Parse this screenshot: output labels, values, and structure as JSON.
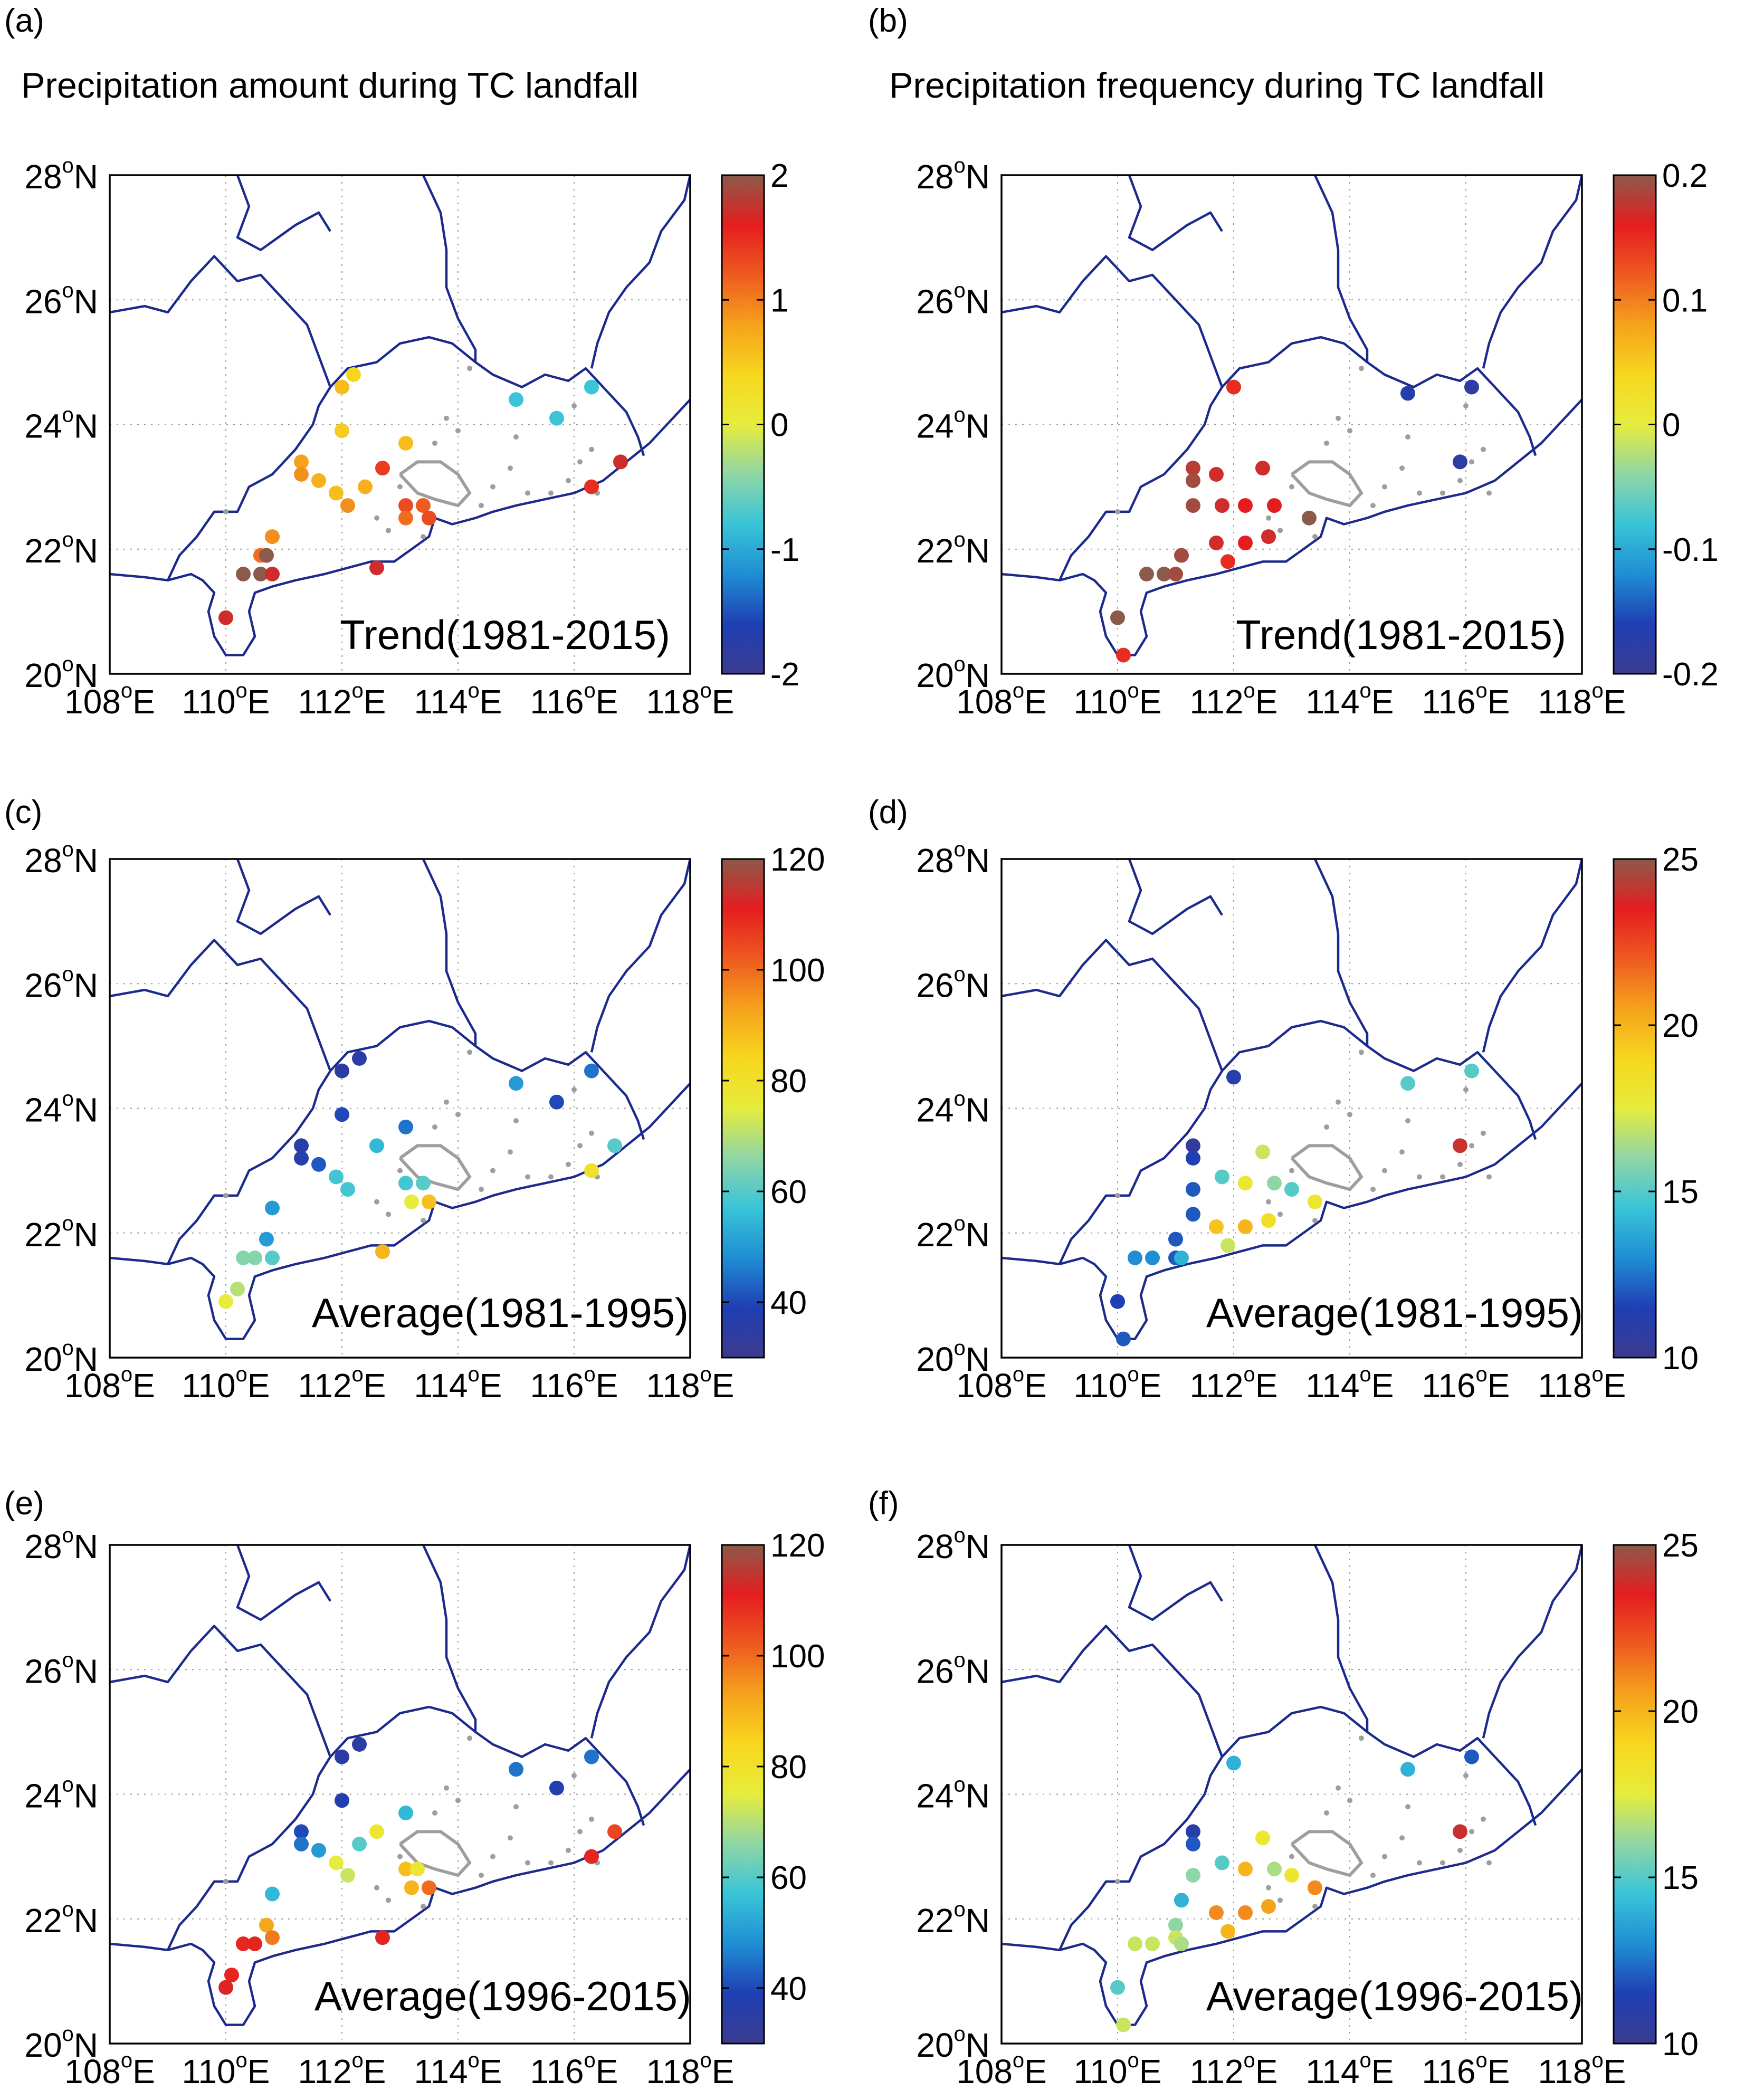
{
  "figure": {
    "column_titles": [
      "Precipitation amount during TC landfall",
      "Precipitation frequency during TC landfall"
    ],
    "lon_ticks": [
      108,
      110,
      112,
      114,
      116,
      118
    ],
    "lat_ticks": [
      20,
      22,
      24,
      26,
      28
    ],
    "lon_suffix": "E",
    "lat_suffix": "N",
    "degree_symbol": "o",
    "colors": {
      "border": "#1c2a8c",
      "station_gray": "#9e9e9e",
      "frame": "#000000",
      "colormap": [
        "#3b3b8f",
        "#1f3fb4",
        "#1f8ed4",
        "#39c4d8",
        "#8fd6a6",
        "#e6ec3c",
        "#f7d71e",
        "#f5a21c",
        "#ee5a20",
        "#e51d20",
        "#8c5a4a"
      ]
    }
  },
  "panels": [
    {
      "label": "(a)",
      "annotation": "Trend(1981-2015)",
      "colorbar": {
        "min": -2,
        "max": 2,
        "ticks": [
          "2",
          "1",
          "0",
          "-1",
          "-2"
        ],
        "tick_values": [
          2,
          1,
          0,
          -1,
          -2
        ]
      },
      "stations": [
        {
          "lon": 112.0,
          "lat": 24.6,
          "value": 0.6
        },
        {
          "lon": 112.2,
          "lat": 24.8,
          "value": 0.4
        },
        {
          "lon": 112.0,
          "lat": 23.9,
          "value": 0.5
        },
        {
          "lon": 111.3,
          "lat": 23.4,
          "value": 0.8
        },
        {
          "lon": 111.3,
          "lat": 23.2,
          "value": 0.9
        },
        {
          "lon": 111.6,
          "lat": 23.1,
          "value": 0.7
        },
        {
          "lon": 111.9,
          "lat": 22.9,
          "value": 0.6
        },
        {
          "lon": 112.1,
          "lat": 22.7,
          "value": 0.9
        },
        {
          "lon": 112.4,
          "lat": 23.0,
          "value": 0.7
        },
        {
          "lon": 112.7,
          "lat": 23.3,
          "value": 1.4
        },
        {
          "lon": 113.1,
          "lat": 23.7,
          "value": 0.6
        },
        {
          "lon": 113.1,
          "lat": 22.7,
          "value": 1.3
        },
        {
          "lon": 113.4,
          "lat": 22.7,
          "value": 1.2
        },
        {
          "lon": 113.1,
          "lat": 22.5,
          "value": 1.1
        },
        {
          "lon": 113.5,
          "lat": 22.5,
          "value": 1.3
        },
        {
          "lon": 110.8,
          "lat": 22.2,
          "value": 0.9
        },
        {
          "lon": 110.6,
          "lat": 21.9,
          "value": 1.1
        },
        {
          "lon": 110.7,
          "lat": 21.9,
          "value": 2.0
        },
        {
          "lon": 110.3,
          "lat": 21.6,
          "value": 2.0
        },
        {
          "lon": 110.6,
          "lat": 21.6,
          "value": 2.0
        },
        {
          "lon": 110.8,
          "lat": 21.6,
          "value": 1.7
        },
        {
          "lon": 110.0,
          "lat": 20.9,
          "value": 1.7
        },
        {
          "lon": 115.0,
          "lat": 24.4,
          "value": -0.8
        },
        {
          "lon": 116.3,
          "lat": 24.6,
          "value": -0.8
        },
        {
          "lon": 115.7,
          "lat": 24.1,
          "value": -0.8
        },
        {
          "lon": 116.3,
          "lat": 23.0,
          "value": 1.5
        },
        {
          "lon": 116.8,
          "lat": 23.4,
          "value": 1.7
        },
        {
          "lon": 112.6,
          "lat": 21.7,
          "value": 1.7
        }
      ]
    },
    {
      "label": "(b)",
      "annotation": "Trend(1981-2015)",
      "colorbar": {
        "min": -0.2,
        "max": 0.2,
        "ticks": [
          "0.2",
          "0.1",
          "0",
          "-0.1",
          "-0.2"
        ],
        "tick_values": [
          0.2,
          0.1,
          0,
          -0.1,
          -0.2
        ]
      },
      "stations": [
        {
          "lon": 112.0,
          "lat": 24.6,
          "value": 0.15
        },
        {
          "lon": 111.3,
          "lat": 23.3,
          "value": 0.18
        },
        {
          "lon": 111.3,
          "lat": 23.1,
          "value": 0.19
        },
        {
          "lon": 111.7,
          "lat": 23.2,
          "value": 0.17
        },
        {
          "lon": 112.5,
          "lat": 23.3,
          "value": 0.17
        },
        {
          "lon": 111.3,
          "lat": 22.7,
          "value": 0.19
        },
        {
          "lon": 111.8,
          "lat": 22.7,
          "value": 0.17
        },
        {
          "lon": 112.2,
          "lat": 22.7,
          "value": 0.16
        },
        {
          "lon": 112.7,
          "lat": 22.7,
          "value": 0.16
        },
        {
          "lon": 113.3,
          "lat": 22.5,
          "value": 0.2
        },
        {
          "lon": 111.7,
          "lat": 22.1,
          "value": 0.17
        },
        {
          "lon": 112.2,
          "lat": 22.1,
          "value": 0.16
        },
        {
          "lon": 112.6,
          "lat": 22.2,
          "value": 0.17
        },
        {
          "lon": 111.1,
          "lat": 21.9,
          "value": 0.19
        },
        {
          "lon": 111.9,
          "lat": 21.8,
          "value": 0.15
        },
        {
          "lon": 110.8,
          "lat": 21.6,
          "value": 0.2
        },
        {
          "lon": 110.5,
          "lat": 21.6,
          "value": 0.2
        },
        {
          "lon": 111.0,
          "lat": 21.6,
          "value": 0.19
        },
        {
          "lon": 110.0,
          "lat": 20.9,
          "value": 0.2
        },
        {
          "lon": 110.1,
          "lat": 20.3,
          "value": 0.15
        },
        {
          "lon": 115.0,
          "lat": 24.5,
          "value": -0.17
        },
        {
          "lon": 116.1,
          "lat": 24.6,
          "value": -0.18
        },
        {
          "lon": 115.9,
          "lat": 23.4,
          "value": -0.18
        }
      ]
    },
    {
      "label": "(c)",
      "annotation": "Average(1981-1995)",
      "colorbar": {
        "min": 30,
        "max": 120,
        "ticks": [
          "120",
          "100",
          "80",
          "60",
          "40"
        ],
        "tick_values": [
          120,
          100,
          80,
          60,
          40
        ]
      },
      "stations": [
        {
          "lon": 112.0,
          "lat": 24.6,
          "value": 35
        },
        {
          "lon": 112.3,
          "lat": 24.8,
          "value": 35
        },
        {
          "lon": 112.0,
          "lat": 23.9,
          "value": 40
        },
        {
          "lon": 111.3,
          "lat": 23.4,
          "value": 36
        },
        {
          "lon": 111.3,
          "lat": 23.2,
          "value": 36
        },
        {
          "lon": 111.6,
          "lat": 23.1,
          "value": 42
        },
        {
          "lon": 111.9,
          "lat": 22.9,
          "value": 58
        },
        {
          "lon": 112.1,
          "lat": 22.7,
          "value": 58
        },
        {
          "lon": 112.6,
          "lat": 23.4,
          "value": 55
        },
        {
          "lon": 113.1,
          "lat": 23.7,
          "value": 45
        },
        {
          "lon": 113.1,
          "lat": 22.8,
          "value": 58
        },
        {
          "lon": 113.4,
          "lat": 22.8,
          "value": 60
        },
        {
          "lon": 113.2,
          "lat": 22.5,
          "value": 75
        },
        {
          "lon": 113.5,
          "lat": 22.5,
          "value": 88
        },
        {
          "lon": 110.8,
          "lat": 22.4,
          "value": 50
        },
        {
          "lon": 110.7,
          "lat": 21.9,
          "value": 50
        },
        {
          "lon": 110.8,
          "lat": 21.6,
          "value": 60
        },
        {
          "lon": 110.5,
          "lat": 21.6,
          "value": 65
        },
        {
          "lon": 110.3,
          "lat": 21.6,
          "value": 65
        },
        {
          "lon": 110.2,
          "lat": 21.1,
          "value": 70
        },
        {
          "lon": 110.0,
          "lat": 20.9,
          "value": 75
        },
        {
          "lon": 112.7,
          "lat": 21.7,
          "value": 90
        },
        {
          "lon": 115.0,
          "lat": 24.4,
          "value": 50
        },
        {
          "lon": 116.3,
          "lat": 24.6,
          "value": 45
        },
        {
          "lon": 115.7,
          "lat": 24.1,
          "value": 40
        },
        {
          "lon": 116.3,
          "lat": 23.0,
          "value": 80
        },
        {
          "lon": 116.7,
          "lat": 23.4,
          "value": 60
        }
      ]
    },
    {
      "label": "(d)",
      "annotation": "Average(1981-1995)",
      "colorbar": {
        "min": 10,
        "max": 25,
        "ticks": [
          "25",
          "20",
          "15",
          "10"
        ],
        "tick_values": [
          25,
          20,
          15,
          10
        ]
      },
      "stations": [
        {
          "lon": 112.0,
          "lat": 24.5,
          "value": 11
        },
        {
          "lon": 111.3,
          "lat": 23.4,
          "value": 10.5
        },
        {
          "lon": 111.3,
          "lat": 23.2,
          "value": 11.5
        },
        {
          "lon": 112.5,
          "lat": 23.3,
          "value": 17
        },
        {
          "lon": 111.8,
          "lat": 22.9,
          "value": 15
        },
        {
          "lon": 112.2,
          "lat": 22.8,
          "value": 18
        },
        {
          "lon": 112.7,
          "lat": 22.8,
          "value": 16
        },
        {
          "lon": 113.0,
          "lat": 22.7,
          "value": 15
        },
        {
          "lon": 113.4,
          "lat": 22.5,
          "value": 18
        },
        {
          "lon": 111.3,
          "lat": 22.7,
          "value": 12
        },
        {
          "lon": 111.3,
          "lat": 22.3,
          "value": 12
        },
        {
          "lon": 111.7,
          "lat": 22.1,
          "value": 19.5
        },
        {
          "lon": 112.2,
          "lat": 22.1,
          "value": 20
        },
        {
          "lon": 112.6,
          "lat": 22.2,
          "value": 18.5
        },
        {
          "lon": 111.0,
          "lat": 21.9,
          "value": 12
        },
        {
          "lon": 111.0,
          "lat": 21.6,
          "value": 12
        },
        {
          "lon": 111.1,
          "lat": 21.6,
          "value": 14
        },
        {
          "lon": 110.6,
          "lat": 21.6,
          "value": 13
        },
        {
          "lon": 110.3,
          "lat": 21.6,
          "value": 13
        },
        {
          "lon": 110.0,
          "lat": 20.9,
          "value": 11.5
        },
        {
          "lon": 110.1,
          "lat": 20.3,
          "value": 12
        },
        {
          "lon": 111.9,
          "lat": 21.8,
          "value": 17
        },
        {
          "lon": 115.0,
          "lat": 24.4,
          "value": 15
        },
        {
          "lon": 116.1,
          "lat": 24.6,
          "value": 15
        },
        {
          "lon": 115.9,
          "lat": 23.4,
          "value": 24
        }
      ]
    },
    {
      "label": "(e)",
      "annotation": "Average(1996-2015)",
      "colorbar": {
        "min": 30,
        "max": 120,
        "ticks": [
          "120",
          "100",
          "80",
          "60",
          "40"
        ],
        "tick_values": [
          120,
          100,
          80,
          60,
          40
        ]
      },
      "stations": [
        {
          "lon": 112.0,
          "lat": 24.6,
          "value": 35
        },
        {
          "lon": 112.3,
          "lat": 24.8,
          "value": 35
        },
        {
          "lon": 112.0,
          "lat": 23.9,
          "value": 38
        },
        {
          "lon": 111.3,
          "lat": 23.4,
          "value": 40
        },
        {
          "lon": 111.3,
          "lat": 23.2,
          "value": 45
        },
        {
          "lon": 111.6,
          "lat": 23.1,
          "value": 50
        },
        {
          "lon": 111.9,
          "lat": 22.9,
          "value": 75
        },
        {
          "lon": 112.1,
          "lat": 22.7,
          "value": 72
        },
        {
          "lon": 112.6,
          "lat": 23.4,
          "value": 78
        },
        {
          "lon": 113.1,
          "lat": 23.7,
          "value": 55
        },
        {
          "lon": 112.3,
          "lat": 23.2,
          "value": 60
        },
        {
          "lon": 113.1,
          "lat": 22.8,
          "value": 88
        },
        {
          "lon": 113.3,
          "lat": 22.8,
          "value": 78
        },
        {
          "lon": 113.2,
          "lat": 22.5,
          "value": 90
        },
        {
          "lon": 113.5,
          "lat": 22.5,
          "value": 100
        },
        {
          "lon": 110.8,
          "lat": 22.4,
          "value": 55
        },
        {
          "lon": 110.7,
          "lat": 21.9,
          "value": 92
        },
        {
          "lon": 110.8,
          "lat": 21.7,
          "value": 98
        },
        {
          "lon": 110.5,
          "lat": 21.6,
          "value": 110
        },
        {
          "lon": 110.3,
          "lat": 21.6,
          "value": 110
        },
        {
          "lon": 110.1,
          "lat": 21.1,
          "value": 110
        },
        {
          "lon": 110.0,
          "lat": 20.9,
          "value": 112
        },
        {
          "lon": 112.7,
          "lat": 21.7,
          "value": 110
        },
        {
          "lon": 115.0,
          "lat": 24.4,
          "value": 45
        },
        {
          "lon": 116.3,
          "lat": 24.6,
          "value": 45
        },
        {
          "lon": 115.7,
          "lat": 24.1,
          "value": 38
        },
        {
          "lon": 116.3,
          "lat": 23.0,
          "value": 110
        },
        {
          "lon": 116.7,
          "lat": 23.4,
          "value": 105
        }
      ]
    },
    {
      "label": "(f)",
      "annotation": "Average(1996-2015)",
      "colorbar": {
        "min": 10,
        "max": 25,
        "ticks": [
          "25",
          "20",
          "15",
          "10"
        ],
        "tick_values": [
          25,
          20,
          15,
          10
        ]
      },
      "stations": [
        {
          "lon": 112.0,
          "lat": 24.5,
          "value": 14
        },
        {
          "lon": 111.3,
          "lat": 23.4,
          "value": 11
        },
        {
          "lon": 111.3,
          "lat": 23.2,
          "value": 12
        },
        {
          "lon": 112.5,
          "lat": 23.3,
          "value": 18
        },
        {
          "lon": 111.8,
          "lat": 22.9,
          "value": 15
        },
        {
          "lon": 112.2,
          "lat": 22.8,
          "value": 20
        },
        {
          "lon": 112.7,
          "lat": 22.8,
          "value": 16.5
        },
        {
          "lon": 113.0,
          "lat": 22.7,
          "value": 18
        },
        {
          "lon": 113.4,
          "lat": 22.5,
          "value": 21
        },
        {
          "lon": 111.3,
          "lat": 22.7,
          "value": 16
        },
        {
          "lon": 111.1,
          "lat": 22.3,
          "value": 14
        },
        {
          "lon": 111.7,
          "lat": 22.1,
          "value": 21
        },
        {
          "lon": 112.2,
          "lat": 22.1,
          "value": 21
        },
        {
          "lon": 112.6,
          "lat": 22.2,
          "value": 20.5
        },
        {
          "lon": 111.0,
          "lat": 21.9,
          "value": 16
        },
        {
          "lon": 111.0,
          "lat": 21.7,
          "value": 17
        },
        {
          "lon": 111.1,
          "lat": 21.6,
          "value": 16.5
        },
        {
          "lon": 110.6,
          "lat": 21.6,
          "value": 17
        },
        {
          "lon": 110.3,
          "lat": 21.6,
          "value": 17
        },
        {
          "lon": 110.0,
          "lat": 20.9,
          "value": 15
        },
        {
          "lon": 110.1,
          "lat": 20.3,
          "value": 17
        },
        {
          "lon": 111.9,
          "lat": 21.8,
          "value": 20
        },
        {
          "lon": 115.0,
          "lat": 24.4,
          "value": 14
        },
        {
          "lon": 116.1,
          "lat": 24.6,
          "value": 12
        },
        {
          "lon": 115.9,
          "lat": 23.4,
          "value": 24
        }
      ]
    }
  ],
  "gray_stations": [
    {
      "lon": 110.0,
      "lat": 22.6
    },
    {
      "lon": 112.6,
      "lat": 22.5
    },
    {
      "lon": 113.4,
      "lat": 22.2
    },
    {
      "lon": 114.4,
      "lat": 22.7
    },
    {
      "lon": 114.6,
      "lat": 23.0
    },
    {
      "lon": 114.9,
      "lat": 23.3
    },
    {
      "lon": 115.2,
      "lat": 22.9
    },
    {
      "lon": 115.6,
      "lat": 22.9
    },
    {
      "lon": 115.9,
      "lat": 23.1
    },
    {
      "lon": 116.1,
      "lat": 23.4
    },
    {
      "lon": 116.3,
      "lat": 23.6
    },
    {
      "lon": 116.4,
      "lat": 22.9
    },
    {
      "lon": 116.0,
      "lat": 24.3
    },
    {
      "lon": 113.8,
      "lat": 24.1
    },
    {
      "lon": 113.6,
      "lat": 23.7
    },
    {
      "lon": 114.0,
      "lat": 23.9
    },
    {
      "lon": 113.0,
      "lat": 23.0
    },
    {
      "lon": 112.8,
      "lat": 22.3
    },
    {
      "lon": 115.0,
      "lat": 23.8
    },
    {
      "lon": 114.2,
      "lat": 24.9
    }
  ]
}
